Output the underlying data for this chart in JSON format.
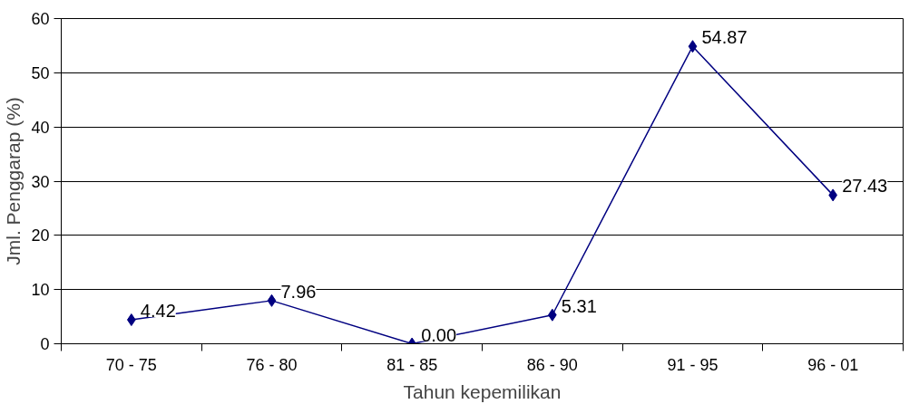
{
  "chart_data": {
    "type": "line",
    "xlabel": "Tahun kepemilikan",
    "ylabel": "Jml. Penggarap (%)",
    "categories": [
      "70 - 75",
      "76 - 80",
      "81 - 85",
      "86 - 90",
      "91 - 95",
      "96 - 01"
    ],
    "series": [
      {
        "color": "#000080",
        "values": [
          4.42,
          7.96,
          0.0,
          5.31,
          54.87,
          27.43
        ],
        "value_labels": [
          "4.42",
          "7.96",
          "0.00",
          "5.31",
          "54.87",
          "27.43"
        ]
      }
    ],
    "ylim": [
      0,
      60
    ],
    "yticks": [
      0,
      10,
      20,
      30,
      40,
      50,
      60
    ],
    "grid": "y",
    "marker": "diamond",
    "line_style": "solid"
  }
}
